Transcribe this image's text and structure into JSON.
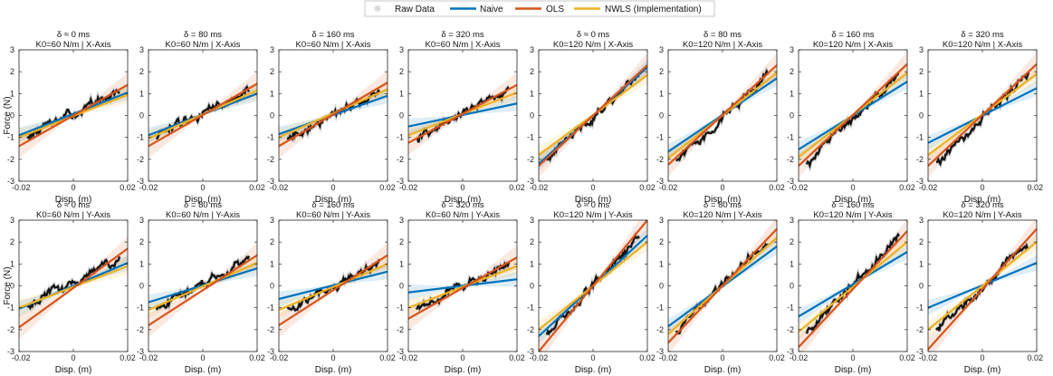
{
  "legend": {
    "raw": "Raw Data",
    "naive": "Naive",
    "ols": "OLS",
    "nwls": "NWLS (Implementation)"
  },
  "colors": {
    "raw": "#c8c8c8",
    "naive": "#0072bd",
    "ols": "#d95319",
    "nwls": "#edb120",
    "axis": "#262626"
  },
  "chart_data": {
    "type": "line",
    "xlabel": "Disp. (m)",
    "ylabel": "Force (N)",
    "xlim": [
      -0.02,
      0.02
    ],
    "ylim": [
      -3,
      3
    ],
    "xticks": [
      "-0.02",
      "0",
      "0.02"
    ],
    "yticks": [
      "3",
      "2",
      "1",
      "0",
      "-1",
      "-2",
      "-3"
    ],
    "series_names": [
      "Raw Data",
      "Naive",
      "OLS",
      "NWLS (Implementation)"
    ],
    "rows": [
      {
        "axis": "X-Axis",
        "panels": [
          {
            "delay": "δ ≈ 0 ms",
            "stiffness": "K0=60 N/m | X-Axis",
            "naive": [
              -0.9,
              1.05
            ],
            "ols": [
              -1.4,
              1.4
            ],
            "nwls": [
              -1.0,
              0.95
            ],
            "raw": [
              -1.15,
              1.3
            ]
          },
          {
            "delay": "δ = 80 ms",
            "stiffness": "K0=60 N/m | X-Axis",
            "naive": [
              -0.9,
              1.0
            ],
            "ols": [
              -1.4,
              1.45
            ],
            "nwls": [
              -1.05,
              1.15
            ],
            "raw": [
              -1.15,
              1.3
            ]
          },
          {
            "delay": "δ = 160 ms",
            "stiffness": "K0=60 N/m | X-Axis",
            "naive": [
              -0.85,
              0.9
            ],
            "ols": [
              -1.4,
              1.5
            ],
            "nwls": [
              -1.0,
              1.2
            ],
            "raw": [
              -1.2,
              1.3
            ]
          },
          {
            "delay": "δ = 320 ms",
            "stiffness": "K0=60 N/m | X-Axis",
            "naive": [
              -0.5,
              0.55
            ],
            "ols": [
              -1.25,
              1.4
            ],
            "nwls": [
              -0.9,
              1.05
            ],
            "raw": [
              -1.2,
              1.35
            ]
          },
          {
            "delay": "δ ≈ 0 ms",
            "stiffness": "K0=120 N/m | X-Axis",
            "naive": [
              -2.2,
              2.2
            ],
            "ols": [
              -2.3,
              2.3
            ],
            "nwls": [
              -1.8,
              1.85
            ],
            "raw": [
              -2.4,
              2.3
            ]
          },
          {
            "delay": "δ = 80 ms",
            "stiffness": "K0=120 N/m | X-Axis",
            "naive": [
              -1.65,
              1.7
            ],
            "ols": [
              -2.25,
              2.3
            ],
            "nwls": [
              -1.95,
              1.95
            ],
            "raw": [
              -2.4,
              2.3
            ]
          },
          {
            "delay": "δ = 160 ms",
            "stiffness": "K0=120 N/m | X-Axis",
            "naive": [
              -1.55,
              1.55
            ],
            "ols": [
              -2.3,
              2.35
            ],
            "nwls": [
              -1.9,
              1.95
            ],
            "raw": [
              -2.5,
              2.3
            ]
          },
          {
            "delay": "δ = 320 ms",
            "stiffness": "K0=120 N/m | X-Axis",
            "naive": [
              -1.25,
              1.25
            ],
            "ols": [
              -2.3,
              2.35
            ],
            "nwls": [
              -1.8,
              1.9
            ],
            "raw": [
              -2.5,
              2.3
            ]
          }
        ]
      },
      {
        "axis": "Y-Axis",
        "panels": [
          {
            "delay": "δ ≈ 0 ms",
            "stiffness": "K0=60 N/m | Y-Axis",
            "naive": [
              -1.05,
              1.05
            ],
            "ols": [
              -1.9,
              1.7
            ],
            "nwls": [
              -1.0,
              0.9
            ],
            "raw": [
              -1.1,
              1.5
            ]
          },
          {
            "delay": "δ = 80 ms",
            "stiffness": "K0=60 N/m | Y-Axis",
            "naive": [
              -0.75,
              0.8
            ],
            "ols": [
              -1.8,
              1.4
            ],
            "nwls": [
              -1.1,
              1.05
            ],
            "raw": [
              -1.2,
              1.4
            ]
          },
          {
            "delay": "δ = 160 ms",
            "stiffness": "K0=60 N/m | Y-Axis",
            "naive": [
              -0.6,
              0.65
            ],
            "ols": [
              -1.8,
              1.4
            ],
            "nwls": [
              -1.1,
              1.0
            ],
            "raw": [
              -1.2,
              1.2
            ]
          },
          {
            "delay": "δ = 320 ms",
            "stiffness": "K0=60 N/m | Y-Axis",
            "naive": [
              -0.3,
              0.3
            ],
            "ols": [
              -1.5,
              1.3
            ],
            "nwls": [
              -1.0,
              0.9
            ],
            "raw": [
              -1.2,
              1.2
            ]
          },
          {
            "delay": "δ ≈ 0 ms",
            "stiffness": "K0=120 N/m | Y-Axis",
            "naive": [
              -2.3,
              2.3
            ],
            "ols": [
              -3.0,
              3.0
            ],
            "nwls": [
              -2.0,
              2.0
            ],
            "raw": [
              -2.5,
              2.6
            ]
          },
          {
            "delay": "δ = 80 ms",
            "stiffness": "K0=120 N/m | Y-Axis",
            "naive": [
              -1.85,
              1.8
            ],
            "ols": [
              -2.6,
              2.6
            ],
            "nwls": [
              -2.2,
              2.2
            ],
            "raw": [
              -2.4,
              2.5
            ]
          },
          {
            "delay": "δ = 160 ms",
            "stiffness": "K0=120 N/m | Y-Axis",
            "naive": [
              -1.4,
              1.55
            ],
            "ols": [
              -2.8,
              2.5
            ],
            "nwls": [
              -2.1,
              2.0
            ],
            "raw": [
              -2.5,
              2.6
            ]
          },
          {
            "delay": "δ = 320 ms",
            "stiffness": "K0=120 N/m | Y-Axis",
            "naive": [
              -1.0,
              1.05
            ],
            "ols": [
              -2.9,
              2.6
            ],
            "nwls": [
              -2.0,
              2.0
            ],
            "raw": [
              -2.4,
              2.4
            ]
          }
        ]
      }
    ]
  }
}
